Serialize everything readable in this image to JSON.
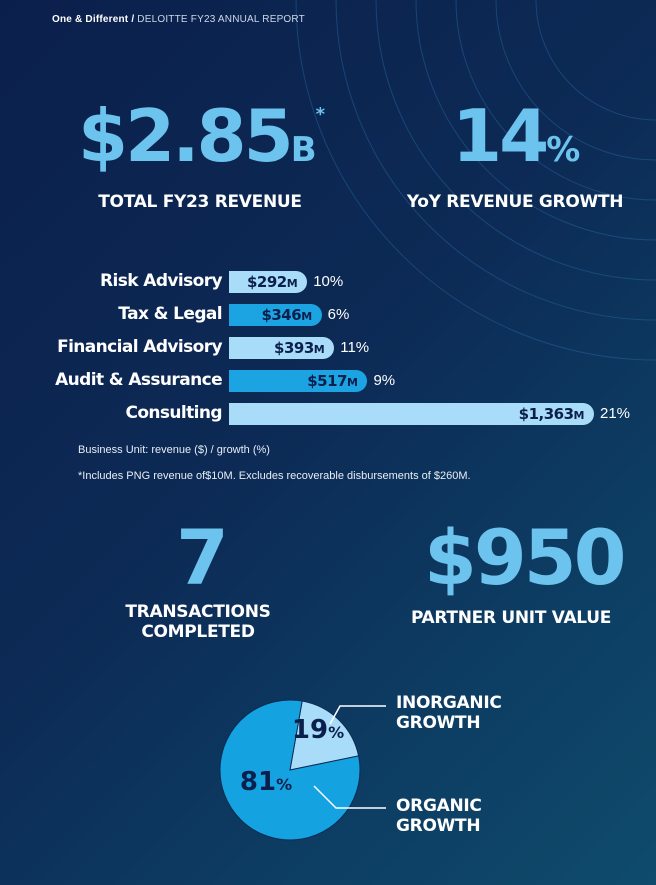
{
  "header": {
    "series": "One & Different",
    "separator": "/",
    "report": "DELOITTE FY23 ANNUAL REPORT"
  },
  "kpis": {
    "revenue": {
      "value": "$2.85",
      "suffix": "B",
      "marker": "*",
      "label": "TOTAL FY23 REVENUE"
    },
    "growth": {
      "value": "14",
      "suffix": "%",
      "label": "YoY REVENUE GROWTH"
    },
    "transactions": {
      "value": "7",
      "label_line1": "TRANSACTIONS",
      "label_line2": "COMPLETED"
    },
    "partner_unit": {
      "value": "$950",
      "label": "PARTNER UNIT VALUE"
    }
  },
  "colors": {
    "accent": "#6cc3ee",
    "bar_light": "#a9dcf8",
    "bar_mid": "#1ba3e2",
    "pie_dark": "#14a3e0",
    "pie_light": "#a9dcf8",
    "text_dark": "#0b1f4c"
  },
  "chart_data": [
    {
      "type": "bar",
      "orientation": "horizontal",
      "categories": [
        "Risk Advisory",
        "Tax & Legal",
        "Financial Advisory",
        "Audit & Assurance",
        "Consulting"
      ],
      "values": [
        292,
        346,
        393,
        517,
        1363
      ],
      "value_labels": [
        "$292",
        "$346",
        "$393",
        "$517",
        "$1,363"
      ],
      "unit_suffix": "M",
      "growth_labels": [
        "10%",
        "6%",
        "11%",
        "9%",
        "21%"
      ],
      "bar_colors": [
        "#a9dcf8",
        "#1ba3e2",
        "#a9dcf8",
        "#1ba3e2",
        "#a9dcf8"
      ],
      "caption": "Business Unit: revenue ($) / growth (%)",
      "footnote": "*Includes PNG revenue of$10M. Excludes recoverable disbursements of $260M."
    },
    {
      "type": "pie",
      "slices": [
        {
          "label_line1": "INORGANIC",
          "label_line2": "GROWTH",
          "value": 19,
          "text": "19",
          "pct": "%"
        },
        {
          "label_line1": "ORGANIC",
          "label_line2": "GROWTH",
          "value": 81,
          "text": "81",
          "pct": "%"
        }
      ]
    }
  ]
}
